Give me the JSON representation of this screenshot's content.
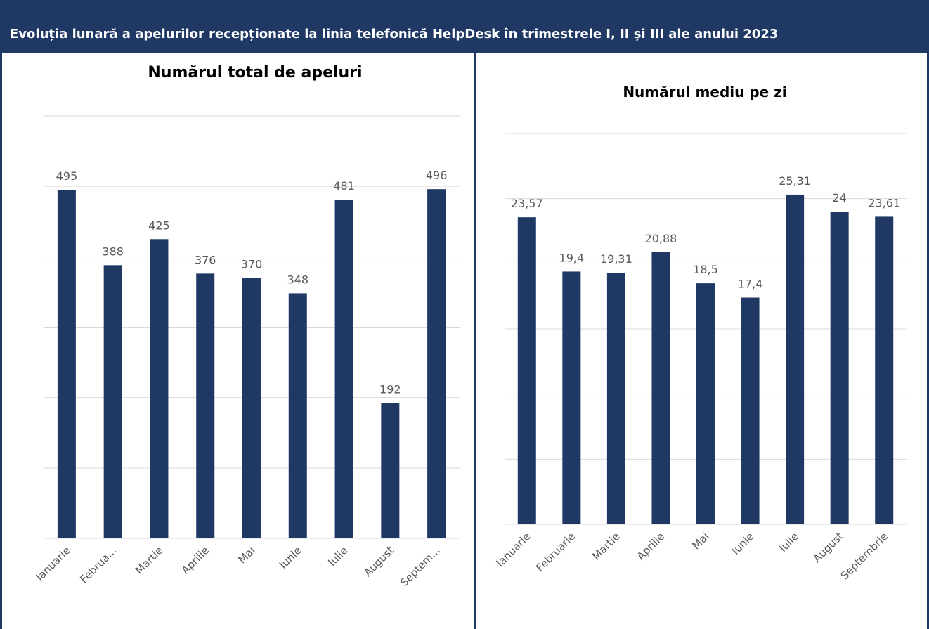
{
  "header": {
    "title": "Evoluția lunară a apelurilor recepționate la linia telefonică HelpDesk în trimestrele I, II și III ale anului 2023"
  },
  "colors": {
    "bar": "#1f3864",
    "grid": "#d9d9d9",
    "label": "#595959"
  },
  "chart_data": [
    {
      "type": "bar",
      "title": "Numărul total de apeluri",
      "categories": [
        "Ianuarie",
        "Februa...",
        "Martie",
        "Aprilie",
        "Mai",
        "Iunie",
        "Iulie",
        "August",
        "Septem..."
      ],
      "values": [
        495,
        388,
        425,
        376,
        370,
        348,
        481,
        192,
        496
      ],
      "value_labels": [
        "495",
        "388",
        "425",
        "376",
        "370",
        "348",
        "481",
        "192",
        "496"
      ],
      "ylim": [
        0,
        600
      ],
      "grid": true,
      "legend": "none"
    },
    {
      "type": "bar",
      "title": "Numărul mediu pe zi",
      "categories": [
        "Ianuarie",
        "Februarie",
        "Martie",
        "Aprilie",
        "Mai",
        "Iunie",
        "Iulie",
        "August",
        "Septembrie"
      ],
      "values": [
        23.57,
        19.4,
        19.31,
        20.88,
        18.5,
        17.4,
        25.31,
        24,
        23.61
      ],
      "value_labels": [
        "23,57",
        "19,4",
        "19,31",
        "20,88",
        "18,5",
        "17,4",
        "25,31",
        "24",
        "23,61"
      ],
      "ylim": [
        0,
        30
      ],
      "grid": true,
      "legend": "none"
    }
  ]
}
